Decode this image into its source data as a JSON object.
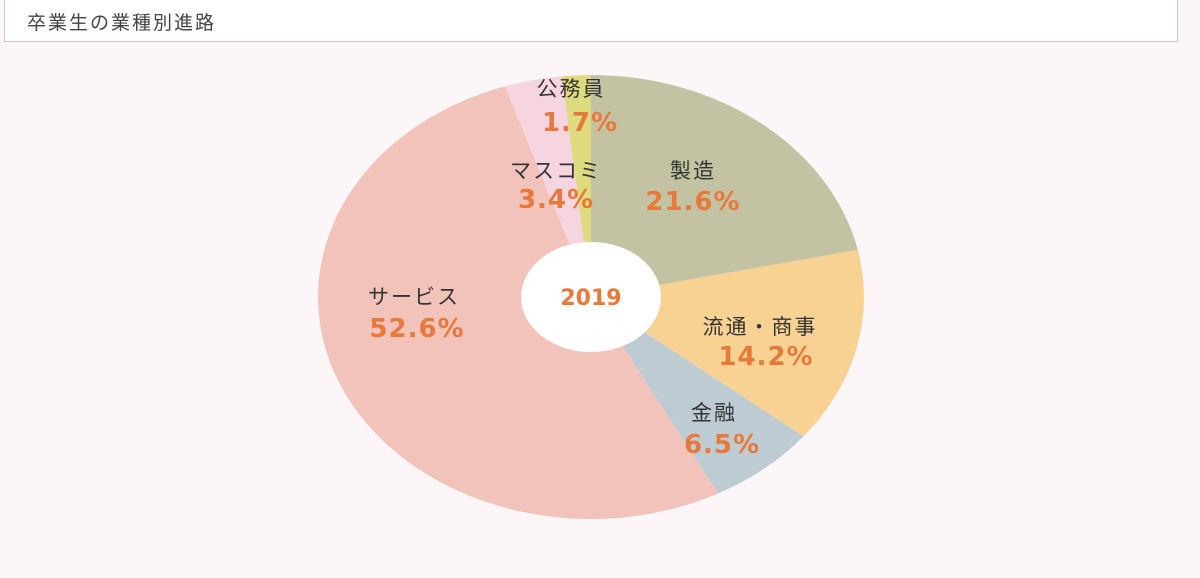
{
  "header": {
    "title": "卒業生の業種別進路"
  },
  "chart_data": {
    "type": "pie",
    "title": "卒業生の業種別進路",
    "center_label": "2019",
    "slices": [
      {
        "label": "製造",
        "value": 21.6,
        "display": "21.6%",
        "color": "#c3c3a3"
      },
      {
        "label": "流通・商事",
        "value": 14.2,
        "display": "14.2%",
        "color": "#f7d293"
      },
      {
        "label": "金融",
        "value": 6.5,
        "display": "6.5%",
        "color": "#bdcbd2"
      },
      {
        "label": "サービス",
        "value": 52.6,
        "display": "52.6%",
        "color": "#f2c3ba"
      },
      {
        "label": "マスコミ",
        "value": 3.4,
        "display": "3.4%",
        "color": "#f7d5e0"
      },
      {
        "label": "公務員",
        "value": 1.7,
        "display": "1.7%",
        "color": "#dedb7e"
      }
    ],
    "label_color": "#e8793a",
    "start": "12 o'clock",
    "direction": "clockwise",
    "hole": true
  }
}
